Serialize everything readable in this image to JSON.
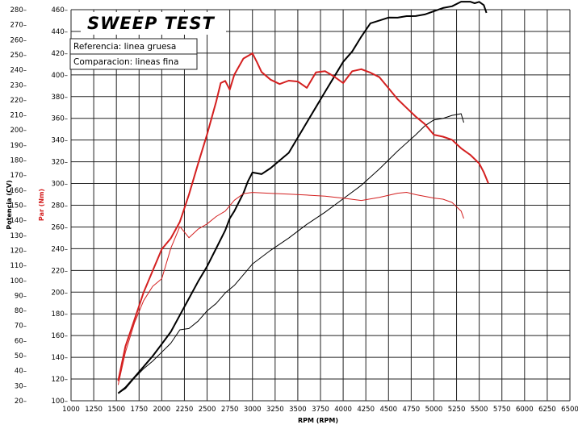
{
  "chart_data": {
    "type": "line",
    "title": "SWEEP TEST",
    "legend": [
      "Referencia: linea gruesa",
      "Comparacion: lineas fina"
    ],
    "xlabel": "RPM (RPM)",
    "ylabel_power": "Potencia (CV)",
    "ylabel_torque": "Par (Nm)",
    "xlim": [
      1000,
      6500
    ],
    "x_ticks": [
      1000,
      1250,
      1500,
      1750,
      2000,
      2250,
      2500,
      2750,
      3000,
      3250,
      3500,
      3750,
      4000,
      4250,
      4500,
      4750,
      5000,
      5250,
      5500,
      5750,
      6000,
      6250,
      6500
    ],
    "power_ylim": [
      20,
      280
    ],
    "power_ticks": [
      20,
      30,
      40,
      50,
      60,
      70,
      80,
      90,
      100,
      110,
      120,
      130,
      140,
      150,
      160,
      170,
      180,
      190,
      200,
      210,
      220,
      230,
      240,
      250,
      260,
      270,
      280
    ],
    "torque_ylim": [
      100,
      460
    ],
    "torque_ticks": [
      100,
      120,
      140,
      160,
      180,
      200,
      220,
      240,
      260,
      280,
      300,
      320,
      340,
      360,
      380,
      400,
      420,
      440,
      460
    ],
    "series": [
      {
        "name": "Potencia referencia",
        "axis": "power",
        "color": "#000000",
        "width": "thick",
        "x": [
          1520,
          1600,
          1700,
          1800,
          1900,
          2000,
          2100,
          2200,
          2300,
          2400,
          2500,
          2600,
          2700,
          2750,
          2800,
          2900,
          2950,
          3000,
          3100,
          3200,
          3300,
          3400,
          3500,
          3600,
          3700,
          3800,
          3900,
          4000,
          4100,
          4200,
          4300,
          4400,
          4500,
          4600,
          4700,
          4800,
          4900,
          5000,
          5100,
          5200,
          5300,
          5400,
          5450,
          5500,
          5550,
          5580
        ],
        "y": [
          25,
          29,
          36,
          43,
          50,
          58,
          66,
          77,
          88,
          99,
          109,
          121,
          133,
          141,
          146,
          158,
          166,
          172,
          171,
          175,
          180,
          185,
          195,
          205,
          215,
          225,
          235,
          245,
          252,
          262,
          271,
          273,
          275,
          275,
          276,
          276,
          277,
          279,
          281,
          282,
          285,
          285,
          284,
          285,
          283,
          278
        ]
      },
      {
        "name": "Potencia comparacion",
        "axis": "power",
        "color": "#000000",
        "width": "thin",
        "x": [
          1520,
          1600,
          1700,
          1800,
          1900,
          2000,
          2100,
          2200,
          2300,
          2400,
          2500,
          2600,
          2700,
          2800,
          2900,
          3000,
          3200,
          3400,
          3600,
          3800,
          4000,
          4200,
          4400,
          4600,
          4800,
          4900,
          5000,
          5100,
          5200,
          5300,
          5330
        ],
        "y": [
          25,
          28,
          35,
          41,
          46,
          52,
          58,
          67,
          68,
          73,
          80,
          85,
          92,
          97,
          104,
          111,
          120,
          128,
          137,
          145,
          154,
          163,
          174,
          186,
          197,
          203,
          207,
          208,
          210,
          211,
          205
        ]
      },
      {
        "name": "Par referencia",
        "axis": "torque",
        "color": "#d42020",
        "width": "thick",
        "x": [
          1520,
          1600,
          1700,
          1800,
          1900,
          2000,
          2100,
          2200,
          2300,
          2400,
          2500,
          2600,
          2650,
          2700,
          2750,
          2800,
          2900,
          3000,
          3050,
          3100,
          3200,
          3300,
          3400,
          3500,
          3600,
          3700,
          3800,
          3900,
          4000,
          4100,
          4200,
          4300,
          4400,
          4500,
          4600,
          4700,
          4800,
          4900,
          5000,
          5100,
          5200,
          5300,
          5400,
          5500,
          5550,
          5600
        ],
        "y": [
          118,
          150,
          175,
          200,
          220,
          240,
          250,
          265,
          290,
          318,
          345,
          375,
          392,
          394,
          386,
          400,
          415,
          420,
          412,
          403,
          396,
          392,
          395,
          394,
          388,
          402,
          403,
          398,
          392,
          403,
          405,
          402,
          398,
          388,
          378,
          370,
          362,
          355,
          345,
          343,
          340,
          332,
          326,
          318,
          310,
          300
        ]
      },
      {
        "name": "Par comparacion",
        "axis": "torque",
        "color": "#d42020",
        "width": "thin",
        "x": [
          1520,
          1600,
          1700,
          1800,
          1900,
          2000,
          2100,
          2200,
          2250,
          2300,
          2400,
          2500,
          2600,
          2700,
          2800,
          2900,
          3000,
          3200,
          3400,
          3600,
          3800,
          4000,
          4200,
          4400,
          4600,
          4700,
          4800,
          5000,
          5100,
          5200,
          5300,
          5330
        ],
        "y": [
          115,
          145,
          172,
          192,
          205,
          212,
          240,
          260,
          255,
          250,
          258,
          263,
          270,
          275,
          285,
          291,
          292,
          291,
          290,
          289,
          288,
          286,
          284,
          287,
          291,
          292,
          290,
          287,
          286,
          283,
          275,
          268
        ]
      }
    ]
  }
}
